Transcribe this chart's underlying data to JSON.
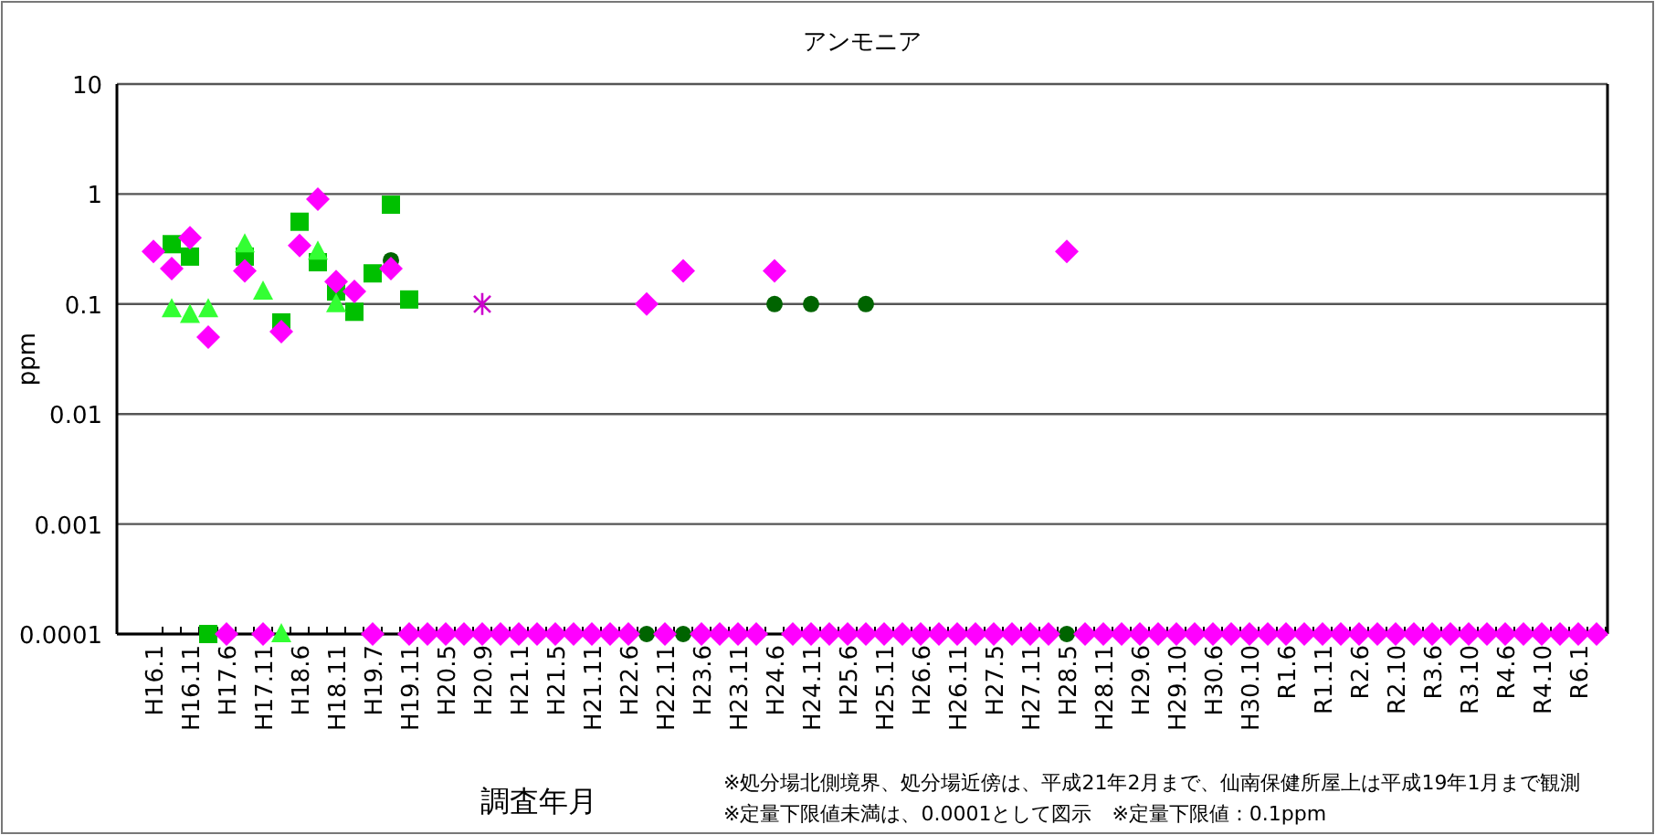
{
  "chart_data": {
    "type": "scatter",
    "title": "アンモニア",
    "xlabel": "調査年月",
    "ylabel": "ppm",
    "annotations": [
      "※処分場北側境界、処分場近傍は、平成21年2月まで、仙南保健所屋上は平成19年1月まで観測",
      "※定量下限値未満は、0.0001として図示　※定量下限値：0.1ppm"
    ],
    "categories": [
      "H16.1",
      null,
      "H16.11",
      null,
      "H17.6",
      null,
      "H17.11",
      null,
      "H18.6",
      null,
      "H18.11",
      null,
      "H19.7",
      null,
      "H19.11",
      null,
      "H20.5",
      null,
      "H20.9",
      null,
      "H21.1",
      null,
      "H21.5",
      null,
      "H21.11",
      null,
      "H22.6",
      null,
      "H22.11",
      null,
      "H23.6",
      null,
      "H23.11",
      null,
      "H24.6",
      null,
      "H24.11",
      null,
      "H25.6",
      null,
      "H25.11",
      null,
      "H26.6",
      null,
      "H26.11",
      null,
      "H27.5",
      null,
      "H27.11",
      null,
      "H28.5",
      null,
      "H28.11",
      null,
      "H29.6",
      null,
      "H29.10",
      null,
      "H30.6",
      null,
      "H30.10",
      null,
      "R1.6",
      null,
      "R1.11",
      null,
      "R2.6",
      null,
      "R2.10",
      null,
      "R3.6",
      null,
      "R3.10",
      null,
      "R4.6",
      null,
      "R4.10",
      null,
      "R6.1",
      null
    ],
    "log": true,
    "ylim": [
      0.0001,
      10
    ],
    "yticks": [
      0.0001,
      0.001,
      0.01,
      0.1,
      1,
      10
    ],
    "grid": "y",
    "series": [
      {
        "color": "#00c000",
        "marker": "square",
        "values": [
          null,
          0.35,
          0.27,
          0.0001,
          null,
          0.27,
          null,
          0.068,
          0.56,
          0.24,
          0.13,
          0.085,
          0.19,
          0.8,
          0.11,
          null,
          null,
          null,
          null,
          null,
          null,
          null,
          null,
          null,
          null,
          null,
          null,
          null,
          null,
          null,
          null,
          null,
          null,
          null,
          null,
          null,
          null,
          null,
          null,
          null,
          null,
          null,
          null,
          null,
          null,
          null,
          null,
          null,
          null,
          null,
          null,
          null,
          null,
          null,
          null,
          null,
          null,
          null,
          null,
          null,
          null,
          null,
          null,
          null,
          null,
          null,
          null,
          null,
          null,
          null,
          null,
          null,
          null,
          null,
          null,
          null,
          null,
          null,
          null,
          null
        ]
      },
      {
        "color": "#33ff33",
        "marker": "triangle",
        "values": [
          null,
          0.09,
          0.08,
          0.09,
          null,
          0.35,
          0.13,
          0.0001,
          null,
          0.3,
          0.1,
          null,
          null,
          null,
          null,
          null,
          null,
          null,
          null,
          null,
          null,
          null,
          null,
          null,
          null,
          null,
          null,
          null,
          null,
          null,
          null,
          null,
          null,
          null,
          null,
          null,
          null,
          null,
          null,
          null,
          null,
          null,
          null,
          null,
          null,
          null,
          null,
          null,
          null,
          null,
          null,
          null,
          null,
          null,
          null,
          null,
          null,
          null,
          null,
          null,
          null,
          null,
          null,
          null,
          null,
          null,
          null,
          null,
          null,
          null,
          null,
          null,
          null,
          null,
          null,
          null,
          null,
          null,
          null,
          null
        ]
      },
      {
        "color": "#006400",
        "marker": "circle",
        "values": [
          null,
          null,
          null,
          null,
          null,
          null,
          null,
          null,
          null,
          null,
          null,
          null,
          null,
          0.25,
          null,
          null,
          null,
          null,
          null,
          null,
          null,
          null,
          null,
          null,
          null,
          null,
          null,
          0.0001,
          null,
          0.0001,
          null,
          null,
          null,
          null,
          0.1,
          null,
          0.1,
          null,
          null,
          0.1,
          null,
          null,
          null,
          null,
          null,
          null,
          null,
          null,
          null,
          null,
          0.0001,
          null,
          null,
          null,
          null,
          null,
          null,
          null,
          null,
          null,
          null,
          null,
          null,
          null,
          null,
          null,
          null,
          null,
          null,
          null,
          null,
          null,
          null,
          null,
          null,
          null,
          null,
          null,
          null,
          null
        ]
      },
      {
        "color": "#ff00ff",
        "marker": "diamond",
        "values": [
          0.3,
          0.21,
          0.4,
          0.05,
          0.0001,
          0.2,
          0.0001,
          0.056,
          0.34,
          0.9,
          0.16,
          0.13,
          0.0001,
          0.21,
          0.0001,
          0.0001,
          0.0001,
          0.0001,
          0.0001,
          0.0001,
          0.0001,
          0.0001,
          0.0001,
          0.0001,
          0.0001,
          0.0001,
          0.0001,
          0.1,
          0.0001,
          0.2,
          0.0001,
          0.0001,
          0.0001,
          0.0001,
          0.2,
          0.0001,
          0.0001,
          0.0001,
          0.0001,
          0.0001,
          0.0001,
          0.0001,
          0.0001,
          0.0001,
          0.0001,
          0.0001,
          0.0001,
          0.0001,
          0.0001,
          0.0001,
          0.3,
          0.0001,
          0.0001,
          0.0001,
          0.0001,
          0.0001,
          0.0001,
          0.0001,
          0.0001,
          0.0001,
          0.0001,
          0.0001,
          0.0001,
          0.0001,
          0.0001,
          0.0001,
          0.0001,
          0.0001,
          0.0001,
          0.0001,
          0.0001,
          0.0001,
          0.0001,
          0.0001,
          0.0001,
          0.0001,
          0.0001,
          0.0001,
          0.0001,
          0.0001
        ]
      },
      {
        "color": "#cc00cc",
        "marker": "cross",
        "values": [
          null,
          null,
          null,
          null,
          null,
          null,
          null,
          null,
          null,
          null,
          null,
          null,
          null,
          null,
          null,
          null,
          null,
          null,
          0.1,
          null,
          null,
          null,
          null,
          null,
          null,
          null,
          null,
          null,
          null,
          null,
          null,
          null,
          null,
          null,
          null,
          null,
          null,
          null,
          null,
          null,
          null,
          null,
          null,
          null,
          null,
          null,
          null,
          null,
          null,
          null,
          null,
          null,
          null,
          null,
          null,
          null,
          null,
          null,
          null,
          null,
          null,
          null,
          null,
          null,
          null,
          null,
          null,
          null,
          null,
          null,
          null,
          null,
          null,
          null,
          null,
          null,
          null,
          null,
          null,
          null
        ]
      }
    ]
  }
}
